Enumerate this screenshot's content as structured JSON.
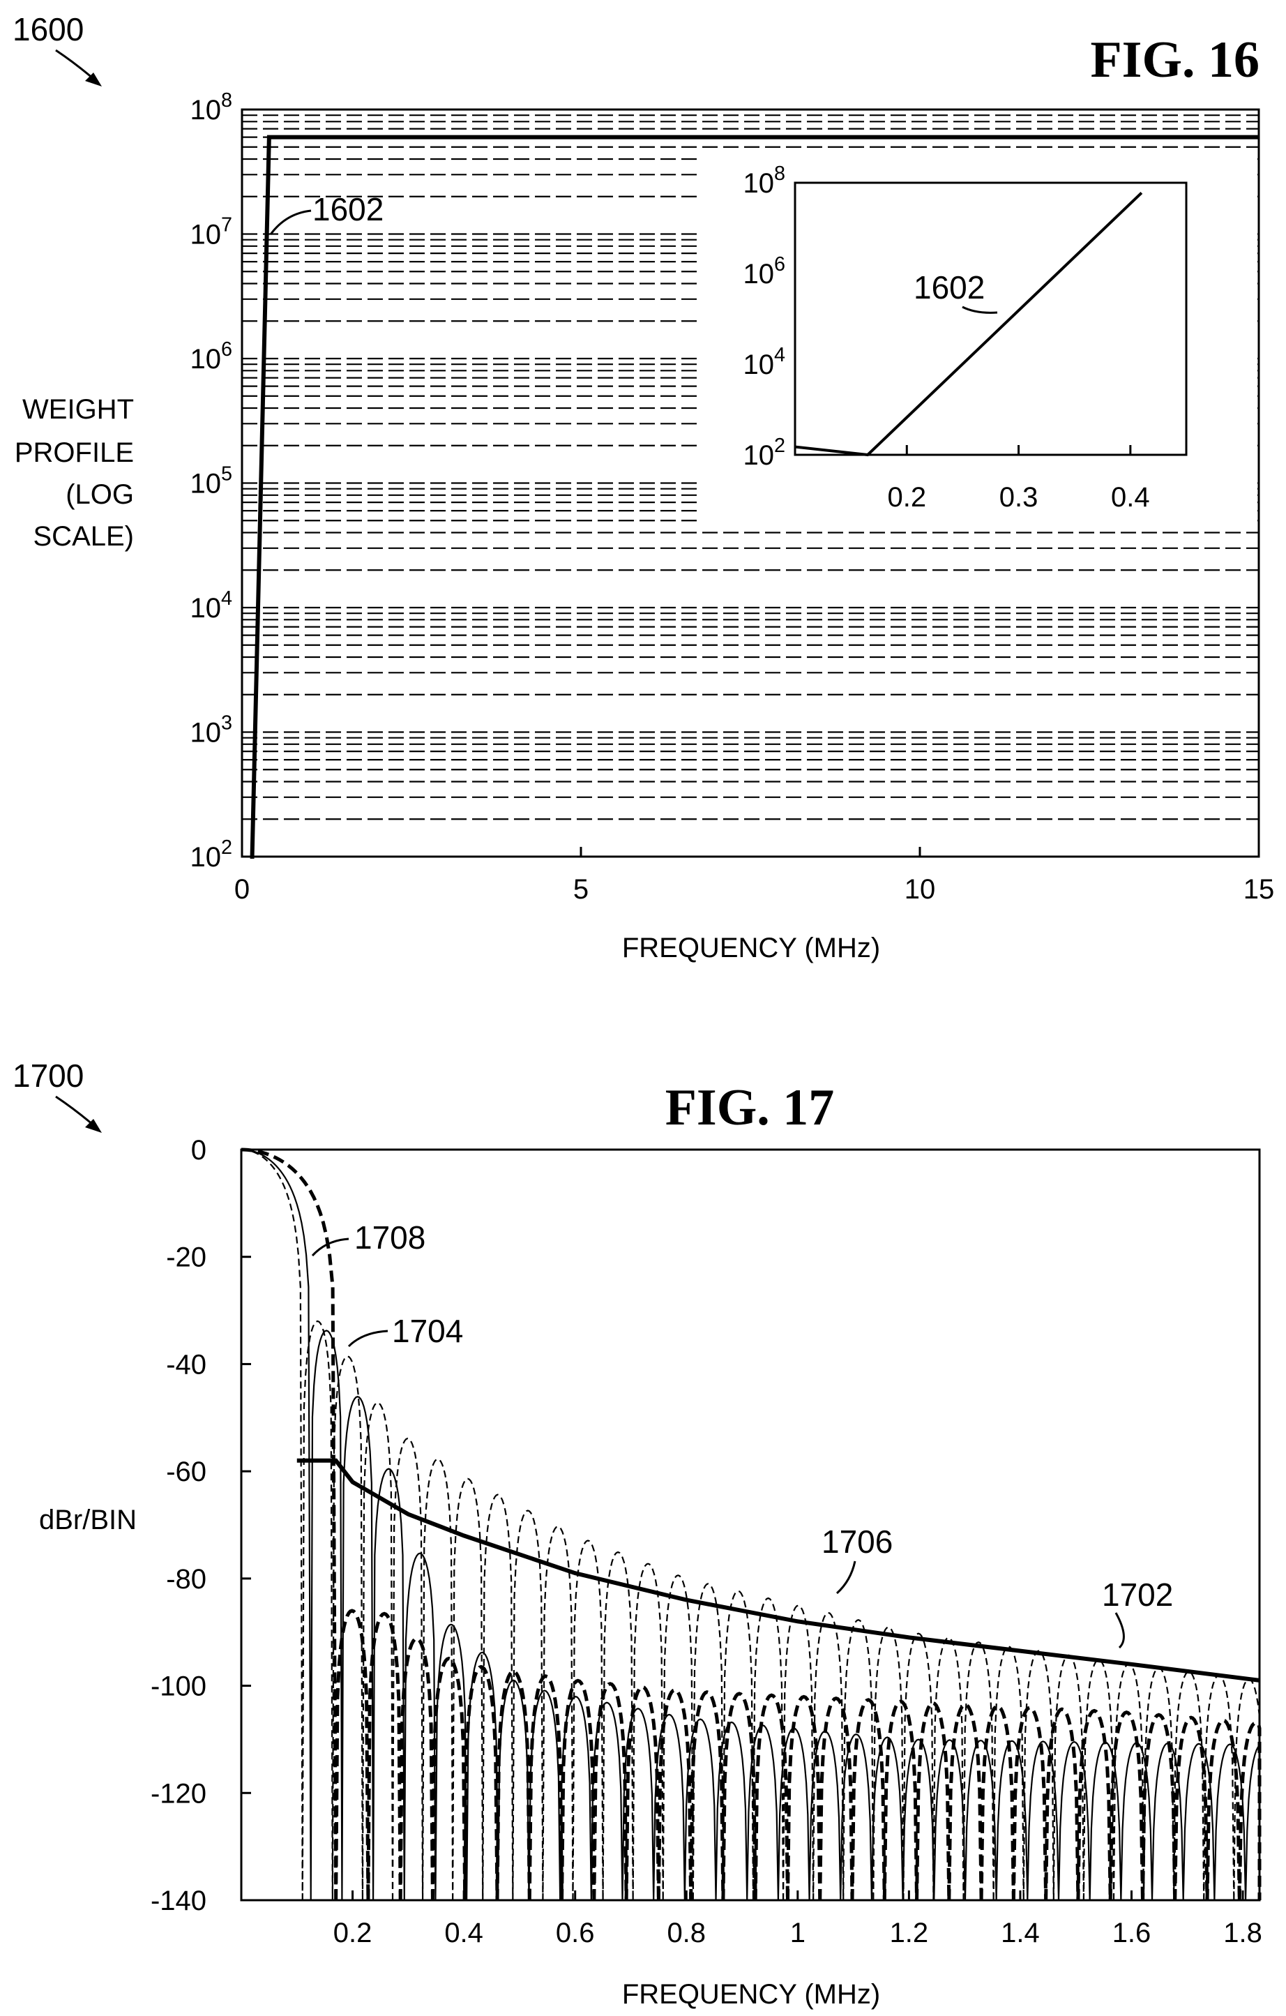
{
  "chart_data": [
    {
      "type": "line",
      "figure_ref": "1600",
      "fig_label": "FIG. 16",
      "xlabel": "FREQUENCY (MHz)",
      "ylabel_lines": [
        "WEIGHT",
        "PROFILE",
        "(LOG",
        "SCALE)"
      ],
      "yscale": "log",
      "xlim": [
        0,
        15
      ],
      "ylim": [
        100,
        100000000
      ],
      "x_ticks": [
        "0",
        "5",
        "10",
        "15"
      ],
      "y_ticks": [
        {
          "base": "10",
          "exp": "2"
        },
        {
          "base": "10",
          "exp": "3"
        },
        {
          "base": "10",
          "exp": "4"
        },
        {
          "base": "10",
          "exp": "5"
        },
        {
          "base": "10",
          "exp": "6"
        },
        {
          "base": "10",
          "exp": "7"
        },
        {
          "base": "10",
          "exp": "8"
        }
      ],
      "grid": "dashed horizontal minor lines",
      "series": [
        {
          "name": "1602",
          "x": [
            0.12,
            0.15,
            0.4,
            15
          ],
          "y": [
            100,
            100,
            60000000,
            60000000
          ]
        }
      ],
      "inset": {
        "xscale": "linear",
        "yscale": "log",
        "xlim": [
          0.1,
          0.45
        ],
        "ylim": [
          100,
          100000000
        ],
        "x_ticks": [
          "0.2",
          "0.3",
          "0.4"
        ],
        "y_ticks": [
          {
            "base": "10",
            "exp": "2"
          },
          {
            "base": "10",
            "exp": "4"
          },
          {
            "base": "10",
            "exp": "6"
          },
          {
            "base": "10",
            "exp": "8"
          }
        ],
        "series": [
          {
            "name": "1602",
            "x": [
              0.1,
              0.165,
              0.41
            ],
            "y": [
              150,
              100,
              60000000
            ]
          }
        ]
      }
    },
    {
      "type": "line",
      "figure_ref": "1700",
      "fig_label": "FIG. 17",
      "xlabel": "FREQUENCY (MHz)",
      "ylabel": "dBr/BIN",
      "xlim": [
        0,
        1.83
      ],
      "ylim": [
        -140,
        0
      ],
      "x_ticks": [
        "0.2",
        "0.4",
        "0.6",
        "0.8",
        "1",
        "1.2",
        "1.4",
        "1.6",
        "1.8"
      ],
      "y_ticks": [
        "0",
        "-20",
        "-40",
        "-60",
        "-80",
        "-100",
        "-120",
        "-140"
      ],
      "series": [
        {
          "name": "1702",
          "style": "solid thick",
          "x": [
            0.1,
            0.17,
            0.2,
            0.3,
            0.4,
            0.6,
            0.8,
            1.0,
            1.2,
            1.4,
            1.6,
            1.83
          ],
          "y": [
            -58,
            -58,
            -62,
            -68,
            -72,
            -79,
            -84,
            -88,
            -91,
            -93.5,
            -96,
            -99
          ]
        },
        {
          "name": "1704",
          "style": "solid thin",
          "envelope_x": [
            0.145,
            0.245,
            0.31,
            0.36,
            0.5,
            0.8,
            1.2,
            1.83
          ],
          "envelope_y": [
            -32,
            -54,
            -72,
            -87,
            -100,
            -106,
            -110,
            -111
          ]
        },
        {
          "name": "1706",
          "style": "dashed thin",
          "envelope_x": [
            0.12,
            0.15,
            0.25,
            0.3,
            0.4,
            0.6,
            0.8,
            1.0,
            1.2,
            1.4,
            1.6,
            1.83
          ],
          "envelope_y": [
            -32,
            -32,
            -48,
            -54,
            -61,
            -72,
            -80,
            -85,
            -90,
            -93,
            -96,
            -99
          ]
        },
        {
          "name": "1708",
          "style": "dashed thick",
          "envelope_x": [
            0.25,
            0.3,
            0.35,
            0.4,
            0.6,
            0.8,
            1.0,
            1.2,
            1.4,
            1.6,
            1.83
          ],
          "envelope_y": [
            -86,
            -90,
            -94,
            -96,
            -99,
            -101,
            -102,
            -103,
            -104,
            -105,
            -107
          ]
        }
      ]
    }
  ]
}
